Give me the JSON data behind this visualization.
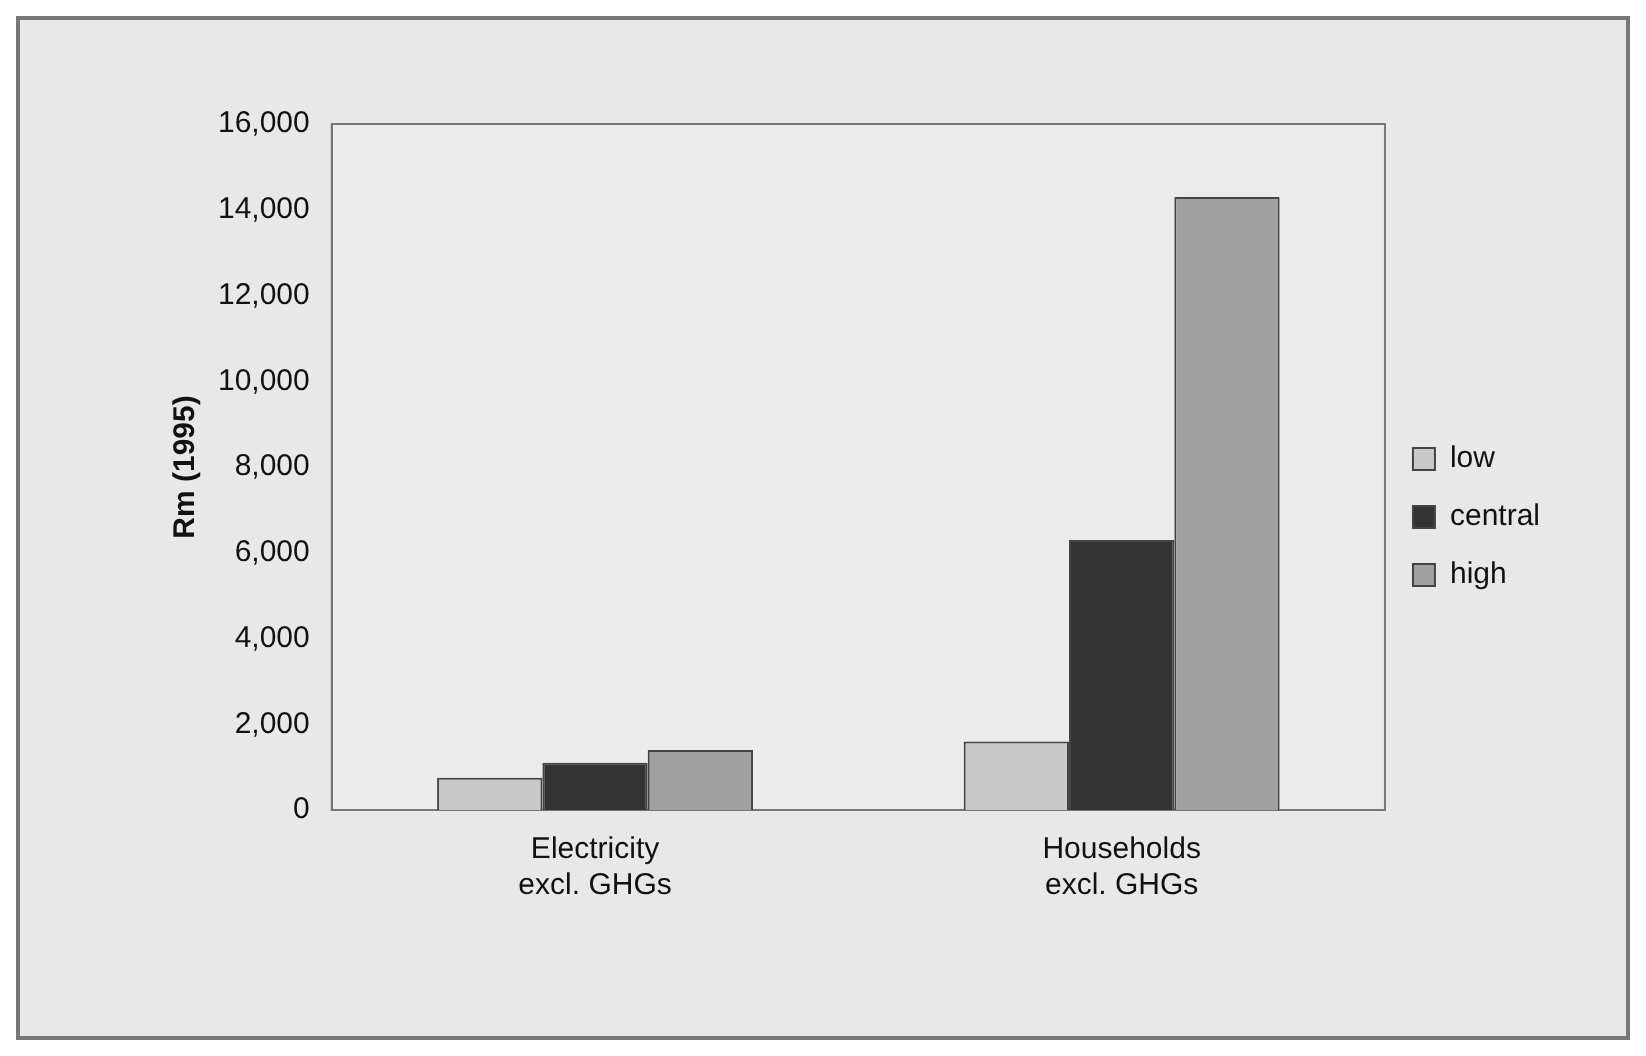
{
  "chart_data": {
    "type": "bar",
    "ylabel": "Rm (1995)",
    "categories": [
      "Electricity excl. GHGs",
      "Households excl. GHGs"
    ],
    "series": [
      {
        "name": "low",
        "color": "#c8c8c8",
        "values": [
          750,
          1600
        ]
      },
      {
        "name": "central",
        "color": "#333333",
        "values": [
          1100,
          6300
        ]
      },
      {
        "name": "high",
        "color": "#a0a0a0",
        "values": [
          1400,
          14300
        ]
      }
    ],
    "ylim": [
      0,
      16000
    ],
    "yticks": [
      0,
      {
        "value": 2000,
        "label": "2,000"
      },
      {
        "value": 4000,
        "label": "4,000"
      },
      {
        "value": 6000,
        "label": "6,000"
      },
      {
        "value": 8000,
        "label": "8,000"
      },
      {
        "value": 10000,
        "label": "10,000"
      },
      {
        "value": 12000,
        "label": "12,000"
      },
      {
        "value": 14000,
        "label": "14,000"
      },
      {
        "value": 16000,
        "label": "16,000"
      }
    ],
    "grid": false,
    "legend": "right"
  }
}
